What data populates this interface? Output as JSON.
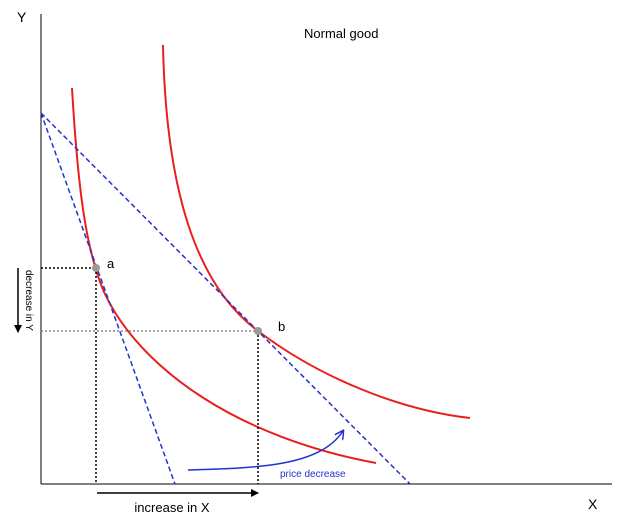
{
  "axes": {
    "y_label": "Y",
    "x_label": "X"
  },
  "title": "Normal good",
  "points": {
    "a": "a",
    "b": "b"
  },
  "annotations": {
    "decrease_y": "decrease in Y",
    "increase_x": "increase in X",
    "price_decrease": "price decrease"
  }
}
